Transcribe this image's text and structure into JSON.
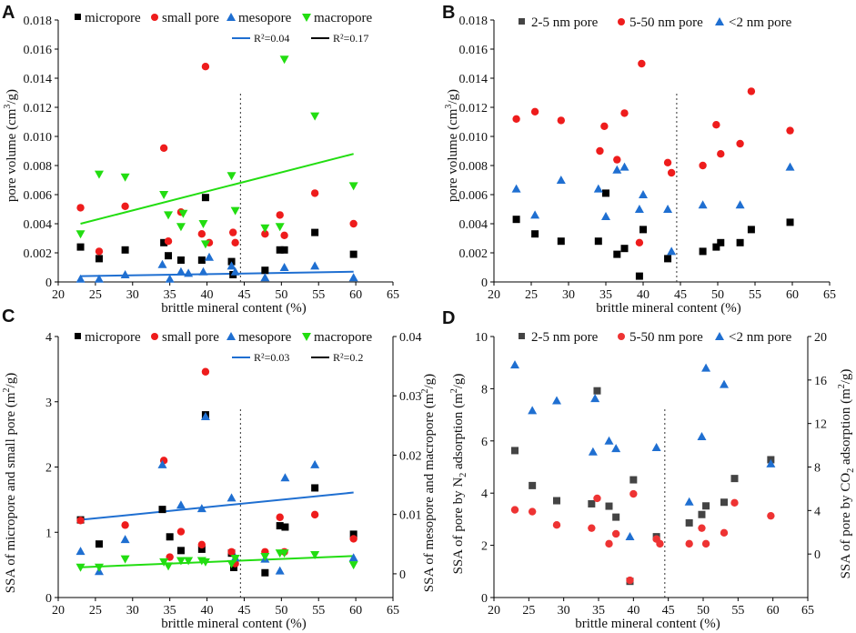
{
  "figure": {
    "x_axis_label": "brittle mineral content (%)",
    "x_ticks": [
      "20",
      "25",
      "30",
      "35",
      "40",
      "45",
      "50",
      "55",
      "60",
      "65"
    ],
    "divider_x": 44.5
  },
  "colors": {
    "micropore": "#000000",
    "small_pore": "#ee1c1c",
    "mesopore": "#1f6fd1",
    "macropore": "#22dd11",
    "nm2_5": "#444444",
    "nm5_50": "#ee3333",
    "nm_lt2": "#1f6fd1"
  },
  "chart_data": [
    {
      "panel": "A",
      "type": "scatter",
      "xlabel": "brittle mineral content (%)",
      "ylabel": "pore volume (cm³/g)",
      "xlim": [
        20,
        65
      ],
      "ylim": [
        0,
        0.018
      ],
      "yticks": [
        "0",
        "0.002",
        "0.004",
        "0.006",
        "0.008",
        "0.010",
        "0.012",
        "0.014",
        "0.016",
        "0.018"
      ],
      "legend": [
        "micropore",
        "small pore",
        "mesopore",
        "macropore"
      ],
      "fit_legend": [
        {
          "series": "mesopore",
          "label": "R²=0.04"
        },
        {
          "series": "micropore",
          "label": "R²=0.17"
        }
      ],
      "series": [
        {
          "name": "micropore",
          "marker": "square",
          "color": "#000000",
          "x": [
            23,
            25.5,
            29,
            34.2,
            34.8,
            36.5,
            39.3,
            39.8,
            43.3,
            43.5,
            47.8,
            49.8,
            50.4,
            54.5,
            59.7
          ],
          "y": [
            0.0024,
            0.0016,
            0.0022,
            0.0027,
            0.0018,
            0.0015,
            0.0015,
            0.0058,
            0.0014,
            0.0005,
            0.0008,
            0.0022,
            0.0022,
            0.0034,
            0.0019
          ]
        },
        {
          "name": "small pore",
          "marker": "circle",
          "color": "#ee1c1c",
          "x": [
            23,
            25.5,
            29,
            34.2,
            34.8,
            36.5,
            39.3,
            39.8,
            40.3,
            43.5,
            43.8,
            47.8,
            49.8,
            50.4,
            54.5,
            59.7
          ],
          "y": [
            0.0051,
            0.0021,
            0.0052,
            0.0092,
            0.0028,
            0.0048,
            0.0033,
            0.0148,
            0.0027,
            0.0034,
            0.0027,
            0.0033,
            0.0046,
            0.0032,
            0.0061,
            0.004
          ]
        },
        {
          "name": "mesopore",
          "marker": "triangle-up",
          "color": "#1f6fd1",
          "x": [
            23,
            25.5,
            29,
            34,
            35,
            36.5,
            37.5,
            39.5,
            40.3,
            43.3,
            43.8,
            47.8,
            50.4,
            54.5,
            59.7
          ],
          "y": [
            0.0002,
            0.0002,
            0.0005,
            0.0012,
            0.0002,
            0.0007,
            0.0006,
            0.0007,
            0.0017,
            0.0011,
            0.0007,
            0.0003,
            0.001,
            0.0011,
            0.0003
          ]
        },
        {
          "name": "macropore",
          "marker": "triangle-down",
          "color": "#22dd11",
          "x": [
            23,
            25.5,
            29,
            34.2,
            34.8,
            36.5,
            36.8,
            39.5,
            39.8,
            43.3,
            43.8,
            47.8,
            49.8,
            50.4,
            54.5,
            59.7
          ],
          "y": [
            0.0033,
            0.0074,
            0.0072,
            0.006,
            0.0046,
            0.0038,
            0.0047,
            0.004,
            0.0026,
            0.0073,
            0.0049,
            0.0037,
            0.0038,
            0.0153,
            0.0114,
            0.0066
          ]
        }
      ],
      "fit_lines": [
        {
          "series": "macropore",
          "color": "#22dd11",
          "x": [
            23,
            59.7
          ],
          "y": [
            0.004,
            0.0088
          ]
        },
        {
          "series": "mesopore",
          "color": "#1f6fd1",
          "x": [
            23,
            59.7
          ],
          "y": [
            0.0004,
            0.0007
          ]
        }
      ]
    },
    {
      "panel": "B",
      "type": "scatter",
      "xlabel": "brittle mineral content (%)",
      "ylabel": "pore volume (cm³/g)",
      "xlim": [
        20,
        65
      ],
      "ylim": [
        0,
        0.018
      ],
      "yticks": [
        "0",
        "0.002",
        "0.004",
        "0.006",
        "0.008",
        "0.010",
        "0.012",
        "0.014",
        "0.016",
        "0.018"
      ],
      "legend": [
        "2-5 nm pore",
        "5-50 nm pore",
        "<2 nm pore"
      ],
      "series": [
        {
          "name": "2-5 nm pore",
          "marker": "square",
          "color": "#000000",
          "x": [
            23,
            25.5,
            29,
            34,
            35,
            36.5,
            37.5,
            39.5,
            40,
            43.3,
            48,
            49.8,
            50.4,
            53,
            54.5,
            59.7
          ],
          "y": [
            0.0043,
            0.0033,
            0.0028,
            0.0028,
            0.0061,
            0.0019,
            0.0023,
            0.0004,
            0.0036,
            0.0016,
            0.0021,
            0.0024,
            0.0027,
            0.0027,
            0.0036,
            0.0041
          ]
        },
        {
          "name": "5-50 nm pore",
          "marker": "circle",
          "color": "#ee1c1c",
          "x": [
            23,
            25.5,
            29,
            34.2,
            34.8,
            36.5,
            37.5,
            39.5,
            39.8,
            43.3,
            43.8,
            48,
            49.8,
            50.4,
            53,
            54.5,
            59.7
          ],
          "y": [
            0.0112,
            0.0117,
            0.0111,
            0.009,
            0.0107,
            0.0084,
            0.0116,
            0.0027,
            0.015,
            0.0082,
            0.0075,
            0.008,
            0.0108,
            0.0088,
            0.0095,
            0.0131,
            0.0104
          ]
        },
        {
          "name": "<2 nm pore",
          "marker": "triangle-up",
          "color": "#1f6fd1",
          "x": [
            23,
            25.5,
            29,
            34,
            35,
            36.5,
            37.5,
            39.5,
            40,
            43.3,
            43.8,
            48,
            53,
            59.7
          ],
          "y": [
            0.0064,
            0.0046,
            0.007,
            0.0064,
            0.0045,
            0.0077,
            0.0079,
            0.005,
            0.006,
            0.005,
            0.0021,
            0.0053,
            0.0053,
            0.0079
          ]
        }
      ],
      "fit_lines": []
    },
    {
      "panel": "C",
      "type": "scatter",
      "xlabel": "brittle mineral content (%)",
      "ylabel": "SSA of micropore and small pore (m²/g)",
      "ylabel_right": "SSA of mesopore and macropore (m²/g)",
      "xlim": [
        20,
        65
      ],
      "ylim": [
        0,
        4
      ],
      "ylim_right": [
        -0.004,
        0.04
      ],
      "yticks": [
        "0",
        "1",
        "2",
        "3",
        "4"
      ],
      "yticks_right": [
        "0",
        "0.01",
        "0.02",
        "0.03",
        "0.04"
      ],
      "legend": [
        "micropore",
        "small pore",
        "mesopore",
        "macropore"
      ],
      "fit_legend": [
        {
          "series": "mesopore",
          "label": "R²=0.03"
        },
        {
          "series": "micropore",
          "label": "R²=0.2"
        }
      ],
      "series": [
        {
          "name": "micropore",
          "marker": "square",
          "color": "#000000",
          "axis": "left",
          "x": [
            23,
            25.5,
            34,
            35,
            36.5,
            39.3,
            39.8,
            43.3,
            43.6,
            47.8,
            49.8,
            50.5,
            54.5,
            59.7
          ],
          "y": [
            1.19,
            0.82,
            1.35,
            0.93,
            0.72,
            0.74,
            2.8,
            0.68,
            0.46,
            0.38,
            1.1,
            1.08,
            1.68,
            0.97
          ]
        },
        {
          "name": "small pore",
          "marker": "circle",
          "color": "#ee1c1c",
          "axis": "left",
          "x": [
            23,
            29,
            34.2,
            35,
            36.5,
            39.3,
            39.8,
            43.3,
            43.8,
            47.8,
            49.8,
            50.4,
            54.5,
            59.7
          ],
          "y": [
            1.18,
            1.11,
            2.1,
            0.62,
            1.01,
            0.81,
            3.46,
            0.7,
            0.52,
            0.7,
            1.23,
            0.7,
            1.27,
            0.9
          ]
        },
        {
          "name": "mesopore",
          "marker": "triangle-up",
          "color": "#1f6fd1",
          "axis": "right",
          "x": [
            23,
            25.5,
            29,
            34,
            36.5,
            39.3,
            39.8,
            43.3,
            43.8,
            47.8,
            49.8,
            50.5,
            54.5,
            59.7
          ],
          "y": [
            0.0038,
            0.0004,
            0.0058,
            0.0184,
            0.0116,
            0.011,
            0.0265,
            0.0128,
            0.0027,
            0.0025,
            0.0005,
            0.0162,
            0.0184,
            0.0027
          ]
        },
        {
          "name": "macropore",
          "marker": "triangle-down",
          "color": "#22dd11",
          "axis": "right",
          "x": [
            23,
            25.5,
            29,
            34.2,
            34.8,
            36.5,
            37.5,
            39.3,
            39.8,
            43.3,
            43.8,
            47.8,
            49.8,
            50.4,
            54.5,
            59.7
          ],
          "y": [
            0.0011,
            0.0011,
            0.0025,
            0.002,
            0.0013,
            0.0022,
            0.0022,
            0.0022,
            0.002,
            0.0017,
            0.0026,
            0.0029,
            0.0035,
            0.0035,
            0.0032,
            0.0015
          ]
        }
      ],
      "fit_lines": [
        {
          "series": "mesopore",
          "color": "#1f6fd1",
          "axis": "right",
          "x": [
            23,
            59.7
          ],
          "y": [
            0.0091,
            0.0137
          ]
        },
        {
          "series": "macropore",
          "color": "#22dd11",
          "axis": "right",
          "x": [
            23,
            59.7
          ],
          "y": [
            0.0011,
            0.003
          ]
        }
      ]
    },
    {
      "panel": "D",
      "type": "scatter",
      "xlabel": "brittle mineral content (%)",
      "ylabel": "SSA of pore by N₂ adsorption (m²/g)",
      "ylabel_right": "SSA of pore by CO₂ adsorption (m²/g)",
      "xlim": [
        20,
        65
      ],
      "ylim": [
        0,
        10
      ],
      "ylim_right": [
        -4,
        20
      ],
      "yticks": [
        "0",
        "2",
        "4",
        "6",
        "8",
        "10"
      ],
      "yticks_right": [
        "0",
        "4",
        "8",
        "12",
        "16",
        "20"
      ],
      "legend": [
        "2-5 nm pore",
        "5-50 nm pore",
        "<2 nm pore"
      ],
      "series": [
        {
          "name": "2-5 nm pore",
          "marker": "square",
          "color": "#444444",
          "axis": "left",
          "x": [
            23,
            25.5,
            29,
            34,
            34.8,
            36.5,
            37.5,
            39.5,
            40,
            43.3,
            48,
            49.8,
            50.4,
            53,
            54.5,
            59.7
          ],
          "y": [
            5.63,
            4.29,
            3.71,
            3.59,
            7.92,
            3.5,
            3.08,
            0.62,
            4.51,
            2.33,
            2.86,
            3.18,
            3.51,
            3.65,
            4.56,
            5.28
          ]
        },
        {
          "name": "5-50 nm pore",
          "marker": "circle",
          "color": "#ee3333",
          "axis": "left",
          "x": [
            23,
            25.5,
            29,
            34,
            34.8,
            36.5,
            37.5,
            39.5,
            40,
            43.3,
            43.8,
            48,
            49.8,
            50.4,
            53,
            54.5,
            59.7
          ],
          "y": [
            3.36,
            3.29,
            2.78,
            2.66,
            3.8,
            2.06,
            2.44,
            0.66,
            3.97,
            2.24,
            2.06,
            2.06,
            2.66,
            2.06,
            2.48,
            3.63,
            3.13
          ]
        },
        {
          "name": "<2 nm pore",
          "marker": "triangle-up",
          "color": "#1f6fd1",
          "axis": "right",
          "x": [
            23,
            25.5,
            29,
            34.2,
            34.5,
            36.5,
            37.5,
            39.5,
            43.3,
            48,
            49.8,
            50.4,
            53,
            59.7
          ],
          "y": [
            17.4,
            13.2,
            14.1,
            9.4,
            14.3,
            10.4,
            9.7,
            1.6,
            9.8,
            4.8,
            10.8,
            17.1,
            15.6,
            8.3
          ]
        }
      ],
      "fit_lines": []
    }
  ]
}
